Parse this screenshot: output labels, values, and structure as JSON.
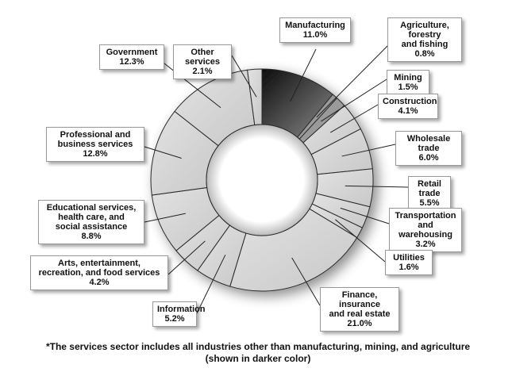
{
  "chart_data": {
    "type": "pie",
    "variant": "donut",
    "slices": [
      {
        "label": "Manufacturing",
        "value": 11.0,
        "value_label": "11.0%",
        "highlight": true
      },
      {
        "label": "Agriculture, forestry\nand fishing",
        "value": 0.8,
        "value_label": "0.8%",
        "highlight": true
      },
      {
        "label": "Mining",
        "value": 1.5,
        "value_label": "1.5%",
        "highlight": true
      },
      {
        "label": "Construction",
        "value": 4.1,
        "value_label": "4.1%"
      },
      {
        "label": "Wholesale trade",
        "value": 6.0,
        "value_label": "6.0%"
      },
      {
        "label": "Retail trade",
        "value": 5.5,
        "value_label": "5.5%"
      },
      {
        "label": "Transportation\nand warehousing",
        "value": 3.2,
        "value_label": "3.2%"
      },
      {
        "label": "Utilities",
        "value": 1.6,
        "value_label": "1.6%"
      },
      {
        "label": "Finance, insurance\nand real estate",
        "value": 21.0,
        "value_label": "21.0%"
      },
      {
        "label": "Information",
        "value": 5.2,
        "value_label": "5.2%"
      },
      {
        "label": "Arts, entertainment,\nrecreation,  and food services",
        "value": 4.2,
        "value_label": "4.2%"
      },
      {
        "label": "Educational services,\nhealth care, and\nsocial assistance",
        "value": 8.8,
        "value_label": "8.8%"
      },
      {
        "label": "Professional and\nbusiness services",
        "value": 12.8,
        "value_label": "12.8%"
      },
      {
        "label": "Government",
        "value": 12.3,
        "value_label": "12.3%"
      },
      {
        "label": "Other services",
        "value": 2.1,
        "value_label": "2.1%"
      }
    ],
    "footnote_line1": "*The services sector includes all industries other than manufacturing, mining, and agriculture",
    "footnote_line2": "(shown in darker color)",
    "colors": {
      "services": "#d6d6d6",
      "manufacturing_dark": "#1a1a1a",
      "primary_light": "#9a9a9a",
      "stroke": "#2a2a2a"
    }
  }
}
